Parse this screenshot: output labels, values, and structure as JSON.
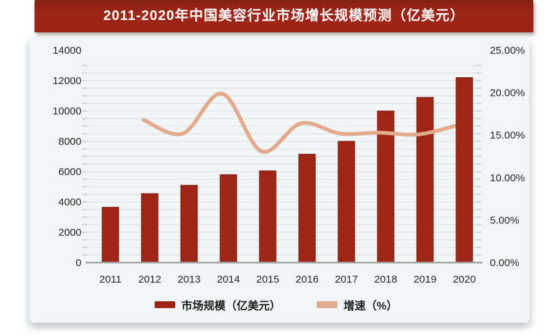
{
  "title": "2011-2020年中国美容行业市场增长规模预测（亿美元）",
  "colors": {
    "banner": "#9c2517",
    "bar": "#9d2617",
    "bar_edge": "#7a1a0d",
    "line": "#e3aa8e",
    "card_bg": "#f2f6f7",
    "grid": "#dcdcdc",
    "axis_line": "#a3a3a3",
    "tick": "#b4b4b4",
    "axis_text": "#262626"
  },
  "chart_data": {
    "type": "bar",
    "combo": "bar + smooth line, dual axis",
    "title": "2011-2020年中国美容行业市场增长规模预测（亿美元）",
    "categories": [
      "2011",
      "2012",
      "2013",
      "2014",
      "2015",
      "2016",
      "2017",
      "2018",
      "2019",
      "2020"
    ],
    "series": [
      {
        "name": "市场规模（亿美元）",
        "type": "bar",
        "axis": "left",
        "values": [
          3650,
          4550,
          5100,
          5800,
          6050,
          7150,
          8000,
          10000,
          10900,
          12200
        ]
      },
      {
        "name": "增速（%）",
        "type": "line",
        "axis": "right",
        "values": [
          null,
          16.8,
          15.2,
          19.9,
          13.1,
          16.4,
          15.2,
          15.3,
          15.1,
          16.2
        ]
      }
    ],
    "left_axis": {
      "label": "",
      "min": 0,
      "max": 14000,
      "step": 2000,
      "ticks": [
        "0",
        "2000",
        "4000",
        "6000",
        "8000",
        "10000",
        "12000",
        "14000"
      ]
    },
    "right_axis": {
      "label": "",
      "min": 0,
      "max": 25,
      "step": 5,
      "ticks": [
        "0.00%",
        "5.00%",
        "10.00%",
        "15.00%",
        "20.00%",
        "25.00%"
      ]
    },
    "grid": "horizontal minor gridlines every 500 units, on",
    "legend_position": "bottom"
  },
  "legend": [
    {
      "label": "市场规模（亿美元）"
    },
    {
      "label": "增速（%）"
    }
  ]
}
